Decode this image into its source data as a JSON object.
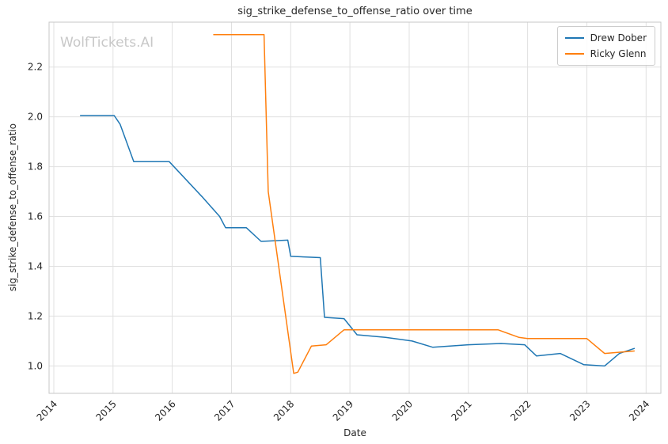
{
  "watermark": "WolfTickets.AI",
  "chart_data": {
    "type": "line",
    "title": "sig_strike_defense_to_offense_ratio over time",
    "xlabel": "Date",
    "ylabel": "sig_strike_defense_to_offense_ratio",
    "grid": true,
    "legend_position": "upper right",
    "xlim": [
      2013.92,
      2024.25
    ],
    "ylim": [
      0.89,
      2.38
    ],
    "x_ticks": [
      2014,
      2015,
      2016,
      2017,
      2018,
      2019,
      2020,
      2021,
      2022,
      2023,
      2024
    ],
    "x_tick_labels": [
      "2014",
      "2015",
      "2016",
      "2017",
      "2018",
      "2019",
      "2020",
      "2021",
      "2022",
      "2023",
      "2024"
    ],
    "y_ticks": [
      1.0,
      1.2,
      1.4,
      1.6,
      1.8,
      2.0,
      2.2
    ],
    "y_tick_labels": [
      "1.0",
      "1.2",
      "1.4",
      "1.6",
      "1.8",
      "2.0",
      "2.2"
    ],
    "series": [
      {
        "name": "Drew Dober",
        "color": "#1f77b4",
        "points": [
          [
            2014.45,
            2.005
          ],
          [
            2015.02,
            2.005
          ],
          [
            2015.12,
            1.97
          ],
          [
            2015.35,
            1.82
          ],
          [
            2015.95,
            1.82
          ],
          [
            2016.5,
            1.68
          ],
          [
            2016.8,
            1.6
          ],
          [
            2016.9,
            1.555
          ],
          [
            2017.25,
            1.555
          ],
          [
            2017.5,
            1.5
          ],
          [
            2017.95,
            1.505
          ],
          [
            2018.0,
            1.44
          ],
          [
            2018.5,
            1.435
          ],
          [
            2018.57,
            1.195
          ],
          [
            2018.9,
            1.19
          ],
          [
            2019.12,
            1.125
          ],
          [
            2019.6,
            1.115
          ],
          [
            2020.05,
            1.1
          ],
          [
            2020.4,
            1.075
          ],
          [
            2021.0,
            1.085
          ],
          [
            2021.55,
            1.09
          ],
          [
            2021.95,
            1.085
          ],
          [
            2022.15,
            1.04
          ],
          [
            2022.55,
            1.05
          ],
          [
            2022.95,
            1.005
          ],
          [
            2023.3,
            1.0
          ],
          [
            2023.55,
            1.05
          ],
          [
            2023.8,
            1.07
          ]
        ]
      },
      {
        "name": "Ricky Glenn",
        "color": "#ff7f0e",
        "points": [
          [
            2016.7,
            2.33
          ],
          [
            2017.55,
            2.33
          ],
          [
            2017.62,
            1.7
          ],
          [
            2018.05,
            0.97
          ],
          [
            2018.12,
            0.975
          ],
          [
            2018.35,
            1.08
          ],
          [
            2018.6,
            1.085
          ],
          [
            2018.9,
            1.145
          ],
          [
            2021.5,
            1.145
          ],
          [
            2021.85,
            1.115
          ],
          [
            2022.0,
            1.11
          ],
          [
            2023.0,
            1.11
          ],
          [
            2023.3,
            1.05
          ],
          [
            2023.8,
            1.06
          ]
        ]
      }
    ]
  }
}
